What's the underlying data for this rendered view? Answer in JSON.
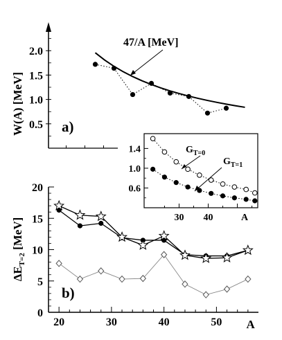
{
  "chart_data": [
    {
      "panel_id": "a",
      "type": "scatter",
      "panel_label": "a)",
      "ylabel": "W(A) [MeV]",
      "yticks": [
        "2.0",
        "1.5",
        "1.0",
        "0.5"
      ],
      "ylim": [
        0.0,
        2.5
      ],
      "xlim": [
        14,
        58
      ],
      "series": [
        {
          "kind": "curve",
          "values_x": [
            24,
            26,
            28,
            30,
            32,
            34,
            36,
            38,
            40,
            42,
            44,
            46,
            48,
            50,
            52,
            54,
            56
          ],
          "values_y": [
            1.958,
            1.808,
            1.679,
            1.567,
            1.469,
            1.382,
            1.306,
            1.237,
            1.175,
            1.119,
            1.068,
            1.022,
            0.979,
            0.94,
            0.904,
            0.87,
            0.839
          ]
        },
        {
          "kind": "points",
          "style": "filled",
          "line": "dotted",
          "x": [
            24,
            28,
            32,
            36,
            40,
            44,
            48,
            52
          ],
          "y": [
            1.72,
            1.64,
            1.1,
            1.33,
            1.13,
            1.06,
            0.72,
            0.82
          ]
        }
      ],
      "annotations": [
        {
          "id": "formula",
          "text": "47/A [MeV]"
        }
      ]
    },
    {
      "panel_id": "inset",
      "type": "scatter",
      "yticks": [
        "1.4",
        "1.0",
        "0.6"
      ],
      "xticks": [
        "30",
        "40",
        "A"
      ],
      "ylim": [
        0.2,
        1.7
      ],
      "xlim": [
        18,
        57
      ],
      "series": [
        {
          "name": "G",
          "name_sub": "T=0",
          "style": "open",
          "line": "dotted",
          "x": [
            21,
            25,
            29,
            33,
            37,
            41,
            45,
            49,
            53,
            56
          ],
          "y": [
            1.6,
            1.33,
            1.13,
            0.98,
            0.86,
            0.76,
            0.68,
            0.62,
            0.57,
            0.5
          ]
        },
        {
          "name": "G",
          "name_sub": "T=1",
          "style": "filled",
          "line": "dotted",
          "x": [
            21,
            25,
            29,
            33,
            37,
            41,
            45,
            49,
            53,
            56
          ],
          "y": [
            0.98,
            0.82,
            0.71,
            0.62,
            0.55,
            0.49,
            0.44,
            0.4,
            0.37,
            0.34
          ]
        }
      ]
    },
    {
      "panel_id": "b",
      "type": "scatter",
      "panel_label": "b)",
      "ylabel": "ΔE",
      "ylabel_sub": "T=2",
      "ylabel_unit": " [MeV]",
      "yticks": [
        "20",
        "15",
        "10",
        "5",
        "0"
      ],
      "xticks": [
        "20",
        "30",
        "40",
        "50",
        "A"
      ],
      "ylim": [
        0,
        20
      ],
      "xlim": [
        18,
        58
      ],
      "series": [
        {
          "style": "filled",
          "line": "solid",
          "x": [
            20,
            24,
            28,
            32,
            36,
            40,
            44,
            48,
            52,
            56
          ],
          "y": [
            16.3,
            13.8,
            14.2,
            11.9,
            11.5,
            11.5,
            9.2,
            9.0,
            9.0,
            9.9
          ]
        },
        {
          "style": "star",
          "line": "solid",
          "x": [
            20,
            24,
            28,
            32,
            36,
            40,
            44,
            48,
            52,
            56
          ],
          "y": [
            17.0,
            15.5,
            15.3,
            12.0,
            10.7,
            12.2,
            9.1,
            8.6,
            8.7,
            9.9
          ]
        },
        {
          "style": "diamond",
          "line": "thin-solid",
          "x": [
            20,
            24,
            28,
            32,
            36,
            40,
            44,
            48,
            52,
            56
          ],
          "y": [
            7.8,
            5.3,
            6.6,
            5.3,
            5.4,
            9.2,
            4.5,
            2.8,
            3.7,
            5.3
          ]
        }
      ]
    }
  ]
}
